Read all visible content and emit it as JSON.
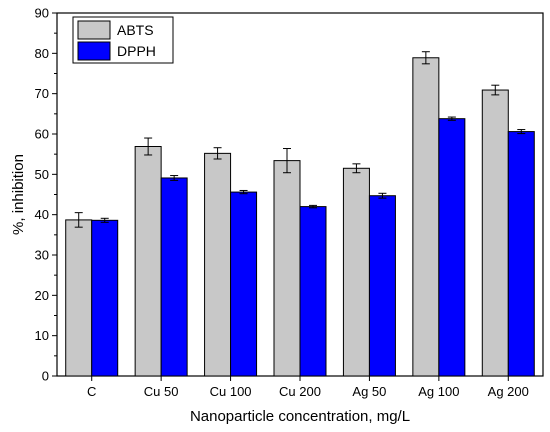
{
  "chart_data": {
    "type": "bar",
    "xlabel": "Nanoparticle concentration, mg/L",
    "ylabel": "%, inhibition",
    "ylim": [
      0,
      90
    ],
    "yticks": [
      0,
      10,
      20,
      30,
      40,
      50,
      60,
      70,
      80,
      90
    ],
    "categories": [
      "C",
      "Cu 50",
      "Cu 100",
      "Cu 200",
      "Ag 50",
      "Ag 100",
      "Ag 200"
    ],
    "legend_position": "top-left",
    "series": [
      {
        "name": "ABTS",
        "color": "#c8c8c8",
        "values": [
          38.7,
          56.9,
          55.2,
          53.4,
          51.5,
          78.9,
          70.9
        ],
        "errors": [
          1.8,
          2.1,
          1.4,
          3.0,
          1.1,
          1.5,
          1.2
        ]
      },
      {
        "name": "DPPH",
        "color": "#0000ff",
        "values": [
          38.6,
          49.1,
          45.6,
          42.0,
          44.7,
          63.8,
          60.6
        ],
        "errors": [
          0.5,
          0.6,
          0.4,
          0.3,
          0.6,
          0.4,
          0.5
        ]
      }
    ]
  }
}
